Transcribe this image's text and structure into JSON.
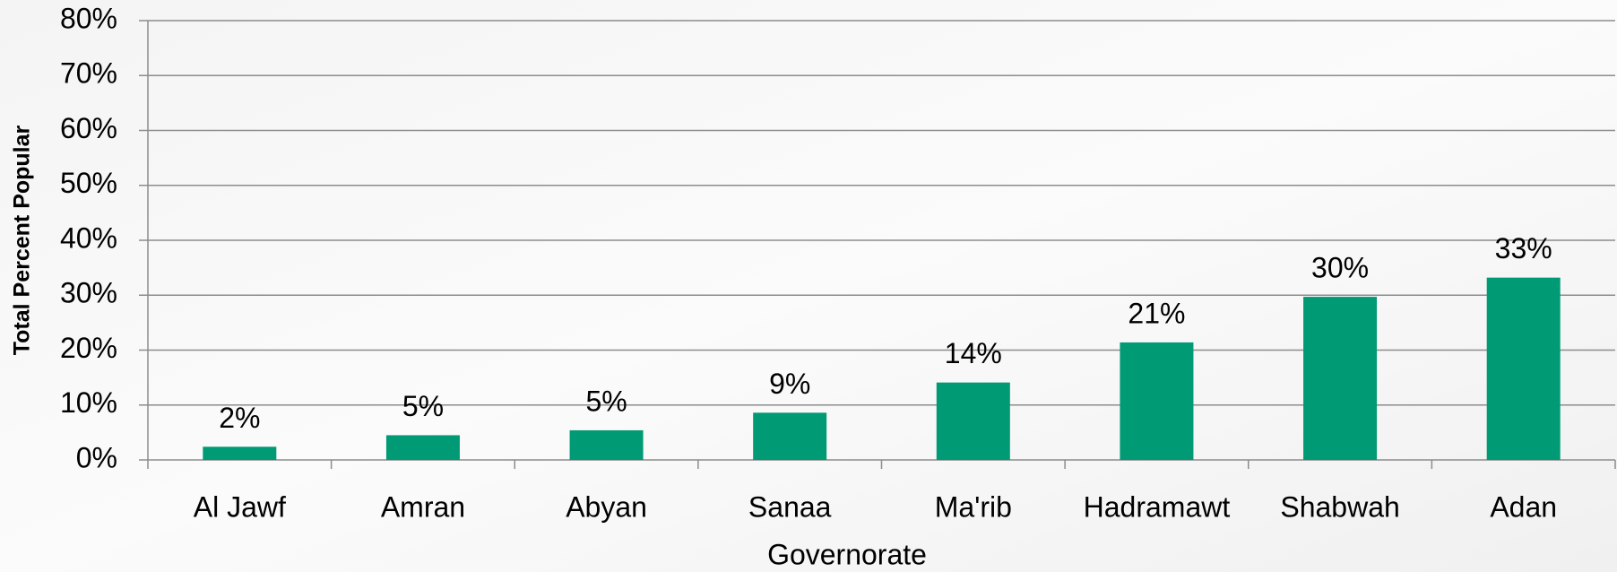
{
  "chart_data": {
    "type": "bar",
    "x_label": "Governorate",
    "y_label": "Total Percent Popular",
    "categories": [
      "Al Jawf",
      "Amran",
      "Abyan",
      "Sanaa",
      "Ma'rib",
      "Hadramawt",
      "Shabwah",
      "Adan"
    ],
    "values": [
      2.4,
      4.5,
      5.4,
      8.6,
      14.1,
      21.4,
      29.7,
      33.2
    ],
    "value_labels": [
      "2%",
      "5%",
      "5%",
      "9%",
      "14%",
      "21%",
      "30%",
      "33%"
    ],
    "color": "#009a74",
    "ylim": [
      0,
      80
    ],
    "yticks": [
      {
        "value": 0,
        "label": "0%"
      },
      {
        "value": 10,
        "label": "10%"
      },
      {
        "value": 20,
        "label": "20%"
      },
      {
        "value": 30,
        "label": "30%"
      },
      {
        "value": 40,
        "label": "40%"
      },
      {
        "value": 50,
        "label": "50%"
      },
      {
        "value": 60,
        "label": "60%"
      },
      {
        "value": 70,
        "label": "70%"
      },
      {
        "value": 80,
        "label": "80%"
      }
    ],
    "grid": true
  }
}
